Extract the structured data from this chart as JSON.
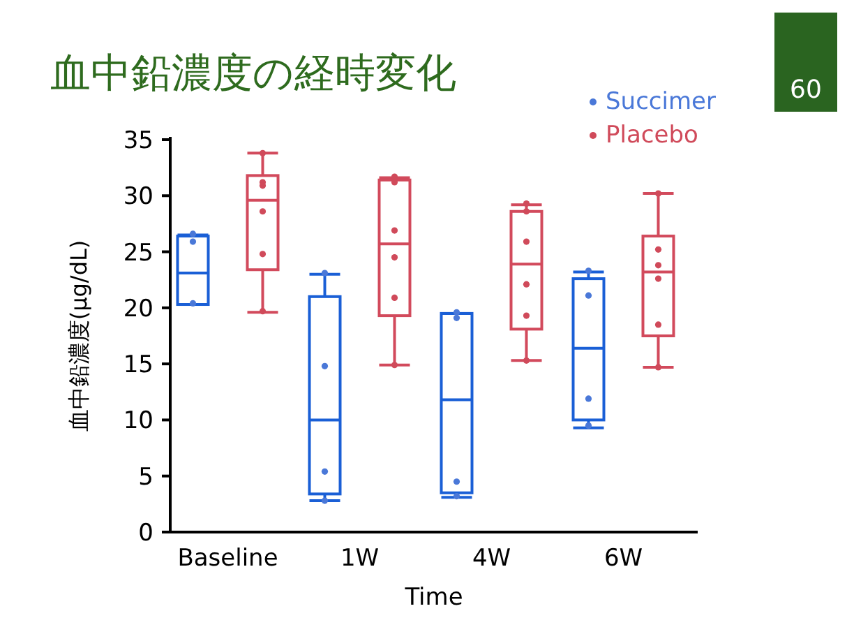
{
  "chart_data": {
    "type": "box",
    "title": "血中鉛濃度の経時変化",
    "xlabel": "Time",
    "ylabel": "血中鉛濃度(μg/dL)",
    "annotations": [
      "60"
    ],
    "categories": [
      "Baseline",
      "1W",
      "4W",
      "6W"
    ],
    "ylim": [
      0,
      35
    ],
    "yticks": [
      0,
      5,
      10,
      15,
      20,
      25,
      30,
      35
    ],
    "grid": false,
    "legend": "top right",
    "series": [
      {
        "type": "box",
        "color": "#1a5fd6",
        "boxes": [
          {
            "low": 20.3,
            "q1": 20.3,
            "median": 23.1,
            "q3": 26.4,
            "high": 26.5
          },
          {
            "low": 2.8,
            "q1": 3.4,
            "median": 10.0,
            "q3": 21.0,
            "high": 23.0
          },
          {
            "low": 3.1,
            "q1": 3.5,
            "median": 11.8,
            "q3": 19.5,
            "high": 19.5
          },
          {
            "low": 9.3,
            "q1": 10.0,
            "median": 16.4,
            "q3": 22.6,
            "high": 23.2
          }
        ]
      },
      {
        "type": "box",
        "color": "#d24a5c",
        "boxes": [
          {
            "low": 19.6,
            "q1": 23.4,
            "median": 29.6,
            "q3": 31.8,
            "high": 33.8
          },
          {
            "low": 14.9,
            "q1": 19.3,
            "median": 25.7,
            "q3": 31.4,
            "high": 31.6
          },
          {
            "low": 15.3,
            "q1": 18.1,
            "median": 23.9,
            "q3": 28.6,
            "high": 29.2
          },
          {
            "low": 14.7,
            "q1": 17.5,
            "median": 23.2,
            "q3": 26.4,
            "high": 30.2
          }
        ]
      },
      {
        "type": "scatter",
        "name": "Succimer",
        "color": "#4a78d8",
        "x": [
          "Baseline",
          "Baseline",
          "Baseline",
          "1W",
          "1W",
          "1W",
          "1W",
          "4W",
          "4W",
          "4W",
          "4W",
          "6W",
          "6W",
          "6W",
          "6W"
        ],
        "values": [
          26.6,
          25.9,
          20.4,
          23.1,
          14.8,
          5.4,
          2.8,
          19.6,
          19.1,
          4.5,
          3.2,
          23.3,
          21.1,
          11.9,
          9.5
        ]
      },
      {
        "type": "scatter",
        "name": "Placebo",
        "color": "#d04a5a",
        "x": [
          "Baseline",
          "Baseline",
          "Baseline",
          "Baseline",
          "Baseline",
          "Baseline",
          "1W",
          "1W",
          "1W",
          "1W",
          "1W",
          "1W",
          "4W",
          "4W",
          "4W",
          "4W",
          "4W",
          "4W",
          "6W",
          "6W",
          "6W",
          "6W",
          "6W",
          "6W"
        ],
        "values": [
          33.8,
          31.2,
          30.9,
          28.6,
          24.8,
          19.7,
          31.7,
          31.2,
          26.9,
          24.5,
          20.9,
          14.9,
          29.3,
          28.6,
          25.9,
          22.1,
          19.3,
          15.3,
          30.2,
          25.2,
          23.8,
          22.6,
          18.5,
          14.7
        ]
      }
    ]
  }
}
